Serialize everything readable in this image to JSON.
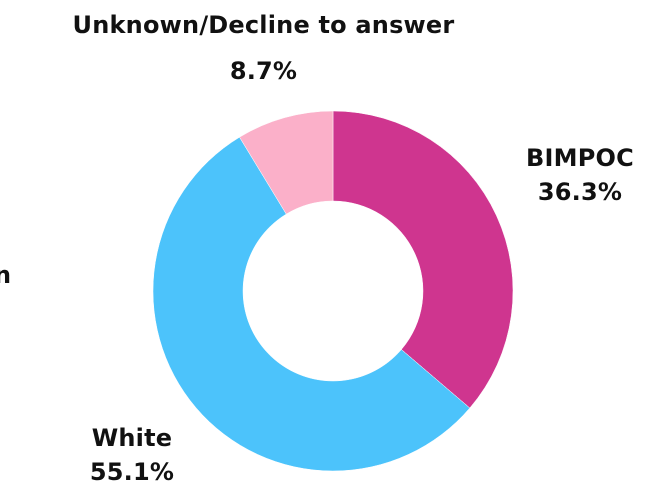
{
  "chart_data": {
    "type": "pie",
    "donut": true,
    "categories": [
      "BIMPOC",
      "White",
      "Unknown/Decline to answer"
    ],
    "values": [
      36.3,
      55.1,
      8.7
    ],
    "value_labels": [
      "36.3%",
      "55.1%",
      "8.7%"
    ],
    "colors": [
      "#cf358f",
      "#4cc3fb",
      "#fbb0c9"
    ],
    "title": "",
    "legend": "none",
    "clipped_fragment": "n"
  }
}
